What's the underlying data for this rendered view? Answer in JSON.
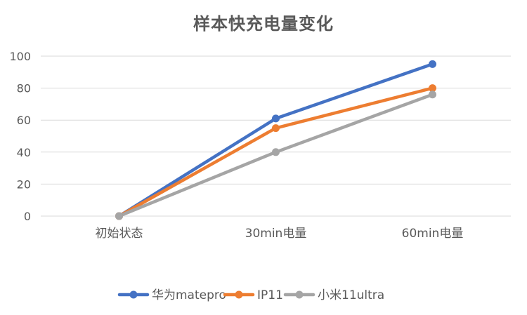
{
  "chart_data": {
    "type": "line",
    "title": "样本快充电量变化",
    "categories": [
      "初始状态",
      "30min电量",
      "60min电量"
    ],
    "series": [
      {
        "name": "华为matepro",
        "values": [
          0,
          61,
          95
        ],
        "color": "#4472C4"
      },
      {
        "name": "IP11",
        "values": [
          0,
          55,
          80
        ],
        "color": "#ED7D31"
      },
      {
        "name": "小米11ultra",
        "values": [
          0,
          40,
          76
        ],
        "color": "#A5A5A5"
      }
    ],
    "yticks": [
      0,
      20,
      40,
      60,
      80,
      100
    ],
    "ylim": [
      0,
      100
    ],
    "grid": true,
    "legend": "bottom",
    "colors": {
      "grid": "#D9D9D9",
      "axis_text": "#595959",
      "title": "#595959"
    }
  }
}
